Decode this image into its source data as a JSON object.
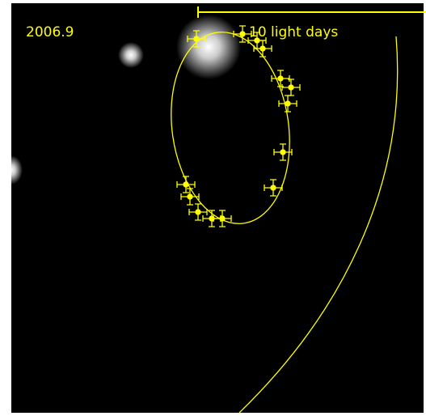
{
  "label": {
    "epoch": "2006.9",
    "scale": "10 light days"
  }
}
